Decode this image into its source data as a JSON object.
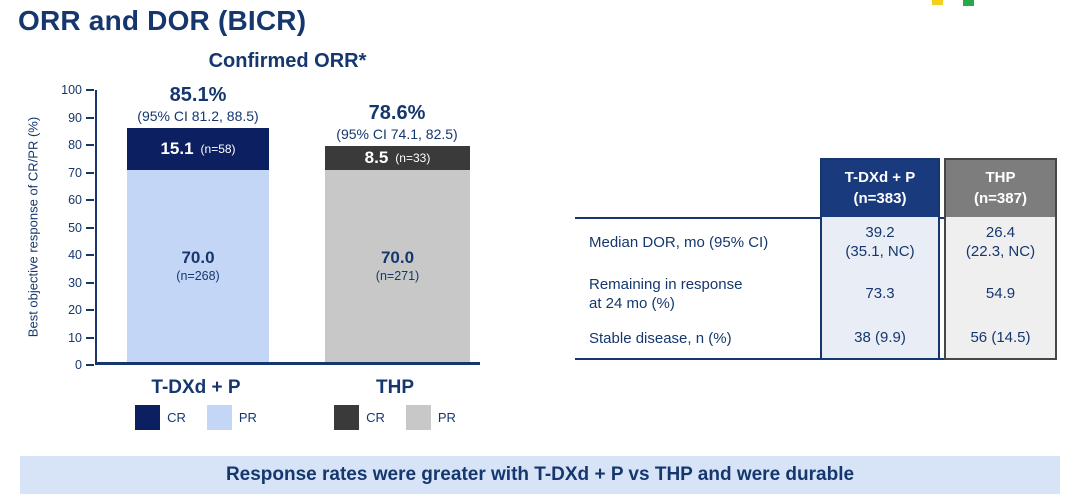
{
  "slide": {
    "title": "ORR and DOR (BICR)",
    "banner_text": "Response rates were greater with T-DXd + P vs THP and were durable"
  },
  "colors": {
    "navy_text": "#15376e",
    "cr_tdxd": "#0c2061",
    "pr_tdxd": "#c3d6f6",
    "cr_thp": "#3a3a3a",
    "pr_thp": "#c8c8c8",
    "table_header_tdxd_bg": "#1a3a7e",
    "table_header_thp_bg": "#7d7d7d",
    "table_cell_tdxd_bg": "#e9edf6",
    "table_cell_thp_bg": "#efefef",
    "banner_bg": "#d7e4f7",
    "logo_yellow": "#f2d01e",
    "logo_green": "#27a84a"
  },
  "chart_data": {
    "type": "bar",
    "stacked": true,
    "title": "Confirmed ORR*",
    "ylabel": "Best objective response of CR/PR (%)",
    "ylim": [
      0,
      100
    ],
    "yticks": [
      0,
      10,
      20,
      30,
      40,
      50,
      60,
      70,
      80,
      90,
      100
    ],
    "categories": [
      "T-DXd + P",
      "THP"
    ],
    "series": [
      {
        "name": "CR",
        "values": [
          15.1,
          8.5
        ]
      },
      {
        "name": "PR",
        "values": [
          70.0,
          70.0
        ]
      }
    ],
    "legend": [
      "CR",
      "PR"
    ],
    "bars": [
      {
        "category": "T-DXd + P",
        "orr_label": "85.1%",
        "ci_label": "(95% CI 81.2, 88.5)",
        "cr": {
          "value": 15.1,
          "label": "15.1",
          "n": "(n=58)"
        },
        "pr": {
          "value": 70.0,
          "label": "70.0",
          "n": "(n=268)"
        },
        "legend_cr": "CR",
        "legend_pr": "PR"
      },
      {
        "category": "THP",
        "orr_label": "78.6%",
        "ci_label": "(95% CI 74.1, 82.5)",
        "cr": {
          "value": 8.5,
          "label": "8.5",
          "n": "(n=33)"
        },
        "pr": {
          "value": 70.0,
          "label": "70.0",
          "n": "(n=271)"
        },
        "legend_cr": "CR",
        "legend_pr": "PR"
      }
    ]
  },
  "table": {
    "columns": [
      {
        "header_line1": "T-DXd + P",
        "header_line2": "(n=383)"
      },
      {
        "header_line1": "THP",
        "header_line2": "(n=387)"
      }
    ],
    "rows": [
      {
        "label_line1": "Median DOR, mo (95% CI)",
        "label_line2": "",
        "col1_line1": "39.2",
        "col1_line2": "(35.1, NC)",
        "col2_line1": "26.4",
        "col2_line2": "(22.3, NC)"
      },
      {
        "label_line1": "Remaining in response",
        "label_line2": "at 24 mo (%)",
        "col1_line1": "73.3",
        "col1_line2": "",
        "col2_line1": "54.9",
        "col2_line2": ""
      },
      {
        "label_line1": "Stable disease, n (%)",
        "label_line2": "",
        "col1_line1": "38 (9.9)",
        "col1_line2": "",
        "col2_line1": "56 (14.5)",
        "col2_line2": ""
      }
    ]
  }
}
